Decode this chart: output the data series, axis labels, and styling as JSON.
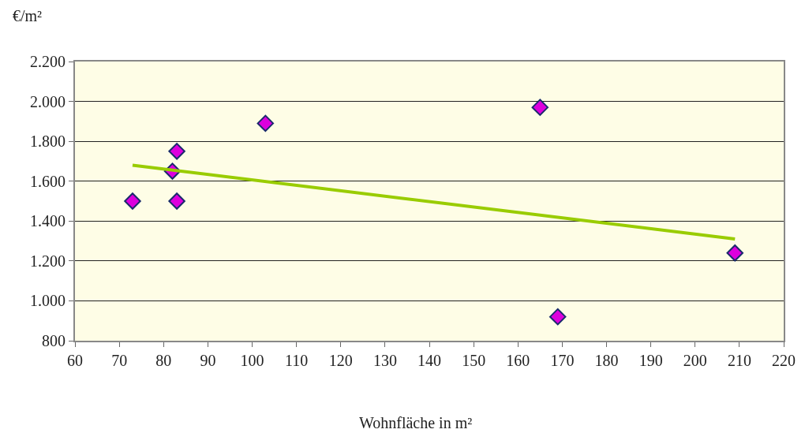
{
  "chart_data": {
    "type": "scatter",
    "xlabel": "Wohnfläche in m²",
    "ylabel": "€/m²",
    "xlim": [
      60,
      220
    ],
    "xticks": [
      60,
      70,
      80,
      90,
      100,
      110,
      120,
      130,
      140,
      150,
      160,
      170,
      180,
      190,
      200,
      210,
      220
    ],
    "ylim": [
      800,
      2200
    ],
    "yticks": [
      {
        "value": 800,
        "label": "800"
      },
      {
        "value": 1000,
        "label": "1.000"
      },
      {
        "value": 1200,
        "label": "1.200"
      },
      {
        "value": 1400,
        "label": "1.400"
      },
      {
        "value": 1600,
        "label": "1.600"
      },
      {
        "value": 1800,
        "label": "1.800"
      },
      {
        "value": 2000,
        "label": "2.000"
      },
      {
        "value": 2200,
        "label": "2.200"
      }
    ],
    "grid": "y",
    "series": [
      {
        "color": "#dd00dd",
        "marker": "diamond",
        "x": [
          73,
          82,
          83,
          83,
          103,
          165,
          169,
          209
        ],
        "values": [
          1500,
          1650,
          1750,
          1500,
          1890,
          1970,
          920,
          1240
        ]
      },
      {
        "type": "line",
        "color": "#99cc00",
        "marker": "none",
        "line_style": "solid",
        "x": [
          73,
          209
        ],
        "values": [
          1680,
          1310
        ]
      }
    ]
  }
}
